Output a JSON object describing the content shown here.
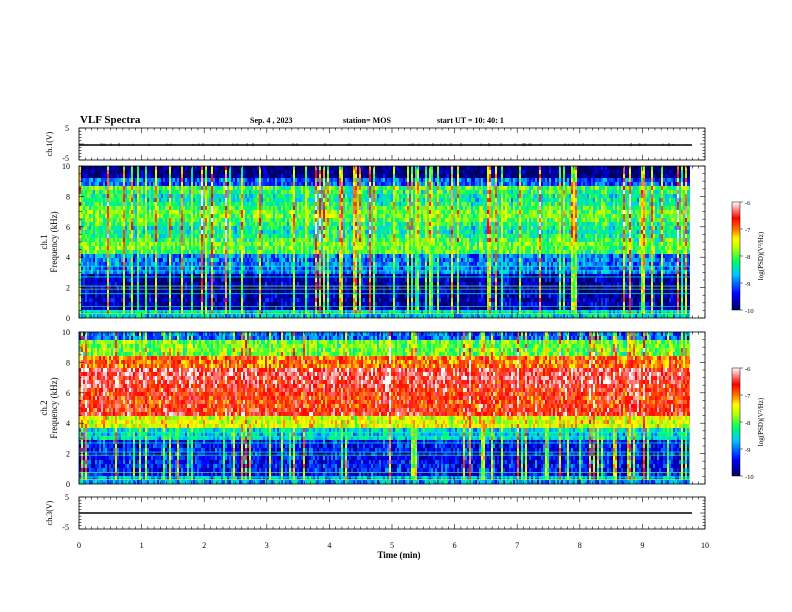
{
  "header": {
    "title": "VLF Spectra",
    "date": "Sep. 4 , 2023",
    "station": "station= MOS",
    "start": "start UT = 10: 40: 1"
  },
  "chart_data": [
    {
      "type": "line",
      "name": "ch1-waveform",
      "ylabel": "ch.1(V)",
      "ylim": [
        -5,
        5
      ],
      "yticks": [
        "5",
        "-5"
      ],
      "xlim": [
        0,
        10
      ],
      "baseline": 0
    },
    {
      "type": "heatmap",
      "name": "ch1-spectrogram",
      "ylabel_line1": "ch.1",
      "ylabel_line2": "Frequency (kHz)",
      "ylim": [
        0,
        10
      ],
      "yticks": [
        "0",
        "2",
        "4",
        "6",
        "8",
        "10"
      ],
      "xlim": [
        0,
        9.8
      ],
      "colorbar": {
        "label": "log(PSD)(V²/Hz)",
        "range": [
          -10,
          -6
        ],
        "ticks": [
          "-6",
          "-7",
          "-8",
          "-9",
          "-10"
        ]
      }
    },
    {
      "type": "heatmap",
      "name": "ch2-spectrogram",
      "ylabel_line1": "ch.2",
      "ylabel_line2": "Frequency (kHz)",
      "ylim": [
        0,
        10
      ],
      "yticks": [
        "0",
        "2",
        "4",
        "6",
        "8",
        "10"
      ],
      "xlim": [
        0,
        9.8
      ],
      "colorbar": {
        "label": "log(PSD)(V²/Hz)",
        "range": [
          -10,
          -6
        ],
        "ticks": [
          "-6",
          "-7",
          "-8",
          "-9",
          "-10"
        ]
      }
    },
    {
      "type": "line",
      "name": "ch3-waveform",
      "ylabel": "ch.3(V)",
      "ylim": [
        -5,
        5
      ],
      "yticks": [
        "5",
        "-5"
      ],
      "xlim": [
        0,
        10
      ],
      "baseline": 0,
      "xlabel": "Time (min)",
      "xticks": [
        "0",
        "1",
        "2",
        "3",
        "4",
        "5",
        "6",
        "7",
        "8",
        "9",
        "10"
      ]
    }
  ],
  "colors": {
    "scale": [
      "#000080",
      "#0000ff",
      "#00c0ff",
      "#00ff80",
      "#80ff00",
      "#ffff00",
      "#ff8000",
      "#ff0000",
      "#ffffff"
    ]
  }
}
